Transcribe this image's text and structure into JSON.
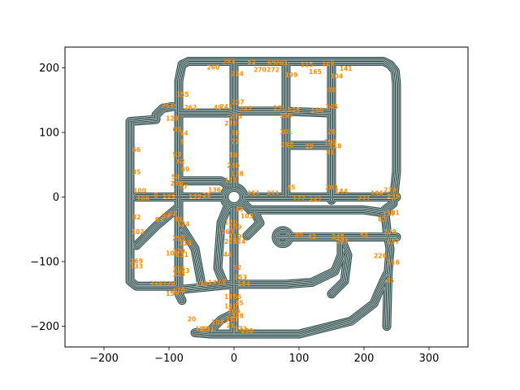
{
  "chart_data": {
    "type": "line",
    "title": "",
    "xlabel": "",
    "ylabel": "",
    "xlim": [
      -260,
      360
    ],
    "ylim": [
      -232,
      232
    ],
    "xticks": [
      -200,
      -100,
      0,
      100,
      200,
      300
    ],
    "yticks": [
      -200,
      -100,
      0,
      100,
      200
    ],
    "xtick_labels": [
      "−200",
      "−100",
      "0",
      "100",
      "200",
      "300"
    ],
    "ytick_labels": [
      "−200",
      "−100",
      "0",
      "100",
      "200"
    ],
    "grid": false,
    "colors": {
      "road": "#2f4f4f",
      "label": "#ff8c00",
      "frame": "#000000",
      "background": "#ffffff"
    },
    "road_segments": [
      [
        [
          -80,
          205
        ],
        [
          -70,
          210
        ],
        [
          230,
          210
        ],
        [
          240,
          205
        ],
        [
          248,
          195
        ],
        [
          250,
          175
        ],
        [
          250,
          40
        ],
        [
          245,
          -10
        ],
        [
          232,
          -20
        ],
        [
          235,
          -50
        ],
        [
          240,
          -80
        ],
        [
          237,
          -120
        ],
        [
          235,
          -200
        ]
      ],
      [
        [
          -80,
          205
        ],
        [
          -85,
          180
        ],
        [
          -85,
          -150
        ],
        [
          -80,
          -160
        ]
      ],
      [
        [
          -95,
          140
        ],
        [
          -110,
          137
        ],
        [
          -120,
          127
        ],
        [
          -120,
          120
        ],
        [
          -160,
          117
        ],
        [
          -160,
          -130
        ],
        [
          -150,
          -138
        ],
        [
          -90,
          -138
        ],
        [
          -80,
          -143
        ]
      ],
      [
        [
          -80,
          -143
        ],
        [
          0,
          -135
        ],
        [
          80,
          -135
        ],
        [
          120,
          -132
        ],
        [
          155,
          -115
        ],
        [
          165,
          -90
        ],
        [
          165,
          -70
        ]
      ],
      [
        [
          -60,
          -210
        ],
        [
          -35,
          -212
        ],
        [
          100,
          -212
        ],
        [
          180,
          -192
        ],
        [
          215,
          -165
        ],
        [
          230,
          -130
        ],
        [
          235,
          -120
        ]
      ],
      [
        [
          -150,
          0
        ],
        [
          -15,
          0
        ]
      ],
      [
        [
          15,
          0
        ],
        [
          250,
          0
        ]
      ],
      [
        [
          -85,
          130
        ],
        [
          -10,
          130
        ],
        [
          10,
          133
        ],
        [
          70,
          133
        ],
        [
          150,
          130
        ]
      ],
      [
        [
          0,
          210
        ],
        [
          0,
          15
        ]
      ],
      [
        [
          0,
          -15
        ],
        [
          0,
          -210
        ]
      ],
      [
        [
          -40,
          -210
        ],
        [
          -20,
          -190
        ],
        [
          0,
          -180
        ]
      ],
      [
        [
          150,
          210
        ],
        [
          150,
          -5
        ]
      ],
      [
        [
          80,
          210
        ],
        [
          80,
          0
        ]
      ],
      [
        [
          80,
          80
        ],
        [
          150,
          80
        ]
      ],
      [
        [
          15,
          -10
        ],
        [
          25,
          -20
        ],
        [
          200,
          -20
        ],
        [
          235,
          -25
        ]
      ],
      [
        [
          -5,
          15
        ],
        [
          -20,
          25
        ],
        [
          -85,
          25
        ]
      ],
      [
        [
          -85,
          -15
        ],
        [
          -120,
          -45
        ],
        [
          -150,
          -75
        ]
      ],
      [
        [
          65,
          -62
        ],
        [
          160,
          -62
        ],
        [
          250,
          -62
        ]
      ],
      [
        [
          -10,
          -15
        ],
        [
          -20,
          -40
        ],
        [
          -25,
          -110
        ],
        [
          -15,
          -135
        ]
      ],
      [
        [
          -85,
          -40
        ],
        [
          -60,
          -80
        ],
        [
          -50,
          -135
        ]
      ],
      [
        [
          30,
          -20
        ],
        [
          40,
          -40
        ],
        [
          20,
          -60
        ]
      ],
      [
        [
          165,
          -65
        ],
        [
          175,
          -90
        ],
        [
          170,
          -130
        ],
        [
          150,
          -150
        ]
      ]
    ],
    "roundabout": {
      "center": [
        0,
        0
      ],
      "radius": 15
    },
    "loop": {
      "center": [
        75,
        -62
      ],
      "rx": 10,
      "ry": 10
    },
    "node_labels": [
      {
        "t": "283",
        "x": -8,
        "y": 209
      },
      {
        "t": "52",
        "x": 27,
        "y": 208
      },
      {
        "t": "69",
        "x": 58,
        "y": 207
      },
      {
        "t": "201",
        "x": 73,
        "y": 207
      },
      {
        "t": "115",
        "x": 112,
        "y": 204
      },
      {
        "t": "107",
        "x": 145,
        "y": 205
      },
      {
        "t": "141",
        "x": 172,
        "y": 198
      },
      {
        "t": "260",
        "x": -32,
        "y": 200
      },
      {
        "t": "224",
        "x": 5,
        "y": 190
      },
      {
        "t": "270",
        "x": 40,
        "y": 196
      },
      {
        "t": "272",
        "x": 60,
        "y": 196
      },
      {
        "t": "165",
        "x": 125,
        "y": 193
      },
      {
        "t": "104",
        "x": 158,
        "y": 186
      },
      {
        "t": "199",
        "x": 88,
        "y": 188
      },
      {
        "t": "155",
        "x": -79,
        "y": 158
      },
      {
        "t": "263",
        "x": -102,
        "y": 140
      },
      {
        "t": "262",
        "x": -67,
        "y": 138
      },
      {
        "t": "49",
        "x": -25,
        "y": 138
      },
      {
        "t": "241",
        "x": -12,
        "y": 139
      },
      {
        "t": "237",
        "x": 6,
        "y": 146
      },
      {
        "t": "242",
        "x": 18,
        "y": 136
      },
      {
        "t": "131",
        "x": 70,
        "y": 137
      },
      {
        "t": "125",
        "x": 92,
        "y": 134
      },
      {
        "t": "150",
        "x": 128,
        "y": 133
      },
      {
        "t": "145",
        "x": 150,
        "y": 139
      },
      {
        "t": "40",
        "x": 150,
        "y": 165
      },
      {
        "t": "235",
        "x": 3,
        "y": 124
      },
      {
        "t": "229",
        "x": -5,
        "y": 113
      },
      {
        "t": "128",
        "x": -95,
        "y": 121
      },
      {
        "t": "150",
        "x": 80,
        "y": 125
      },
      {
        "t": "65",
        "x": -88,
        "y": 104
      },
      {
        "t": "64",
        "x": -77,
        "y": 98
      },
      {
        "t": "5",
        "x": -80,
        "y": 84
      },
      {
        "t": "66",
        "x": -150,
        "y": 72
      },
      {
        "t": "58",
        "x": 2,
        "y": 98
      },
      {
        "t": "72",
        "x": 2,
        "y": 85
      },
      {
        "t": "28",
        "x": 150,
        "y": 100
      },
      {
        "t": "181",
        "x": 80,
        "y": 100
      },
      {
        "t": "258",
        "x": 82,
        "y": 80
      },
      {
        "t": "29",
        "x": 116,
        "y": 78
      },
      {
        "t": "190",
        "x": 148,
        "y": 84
      },
      {
        "t": "218",
        "x": 156,
        "y": 78
      },
      {
        "t": "53",
        "x": -88,
        "y": 65
      },
      {
        "t": "18",
        "x": -1,
        "y": 64
      },
      {
        "t": "250",
        "x": -1,
        "y": 48
      },
      {
        "t": "33",
        "x": 148,
        "y": 68
      },
      {
        "t": "62",
        "x": -82,
        "y": 54
      },
      {
        "t": "69",
        "x": -75,
        "y": 42
      },
      {
        "t": "35",
        "x": -150,
        "y": 38
      },
      {
        "t": "118",
        "x": 5,
        "y": 35
      },
      {
        "t": "113",
        "x": -5,
        "y": 25
      },
      {
        "t": "58",
        "x": -90,
        "y": 30
      },
      {
        "t": "230",
        "x": -88,
        "y": 20
      },
      {
        "t": "57",
        "x": -78,
        "y": 15
      },
      {
        "t": "136",
        "x": -30,
        "y": 10
      },
      {
        "t": "139",
        "x": -60,
        "y": 0
      },
      {
        "t": "125",
        "x": -100,
        "y": 0
      },
      {
        "t": "100",
        "x": -145,
        "y": 9
      },
      {
        "t": "108",
        "x": -140,
        "y": -3
      },
      {
        "t": "0",
        "x": -120,
        "y": 2
      },
      {
        "t": "25",
        "x": -42,
        "y": 2
      },
      {
        "t": "82",
        "x": -150,
        "y": -32
      },
      {
        "t": "89",
        "x": -115,
        "y": -36
      },
      {
        "t": "89",
        "x": -105,
        "y": -30
      },
      {
        "t": "62",
        "x": -95,
        "y": -27
      },
      {
        "t": "86",
        "x": -85,
        "y": -35
      },
      {
        "t": "124",
        "x": -78,
        "y": -43
      },
      {
        "t": "102",
        "x": -148,
        "y": -55
      },
      {
        "t": "45",
        "x": 88,
        "y": 14
      },
      {
        "t": "251",
        "x": 30,
        "y": 5
      },
      {
        "t": "211",
        "x": 60,
        "y": 5
      },
      {
        "t": "203",
        "x": 150,
        "y": 14
      },
      {
        "t": "144",
        "x": 165,
        "y": 8
      },
      {
        "t": "196",
        "x": 220,
        "y": 5
      },
      {
        "t": "239",
        "x": 240,
        "y": 10
      },
      {
        "t": "177",
        "x": 100,
        "y": -3
      },
      {
        "t": "247",
        "x": 125,
        "y": -5
      },
      {
        "t": "271",
        "x": 200,
        "y": -3
      },
      {
        "t": "239",
        "x": 245,
        "y": 0
      },
      {
        "t": "181",
        "x": 245,
        "y": -25
      },
      {
        "t": "137",
        "x": 238,
        "y": -27
      },
      {
        "t": "82",
        "x": 228,
        "y": -35
      },
      {
        "t": "103",
        "x": 20,
        "y": -30
      },
      {
        "t": "43",
        "x": 8,
        "y": -20
      },
      {
        "t": "170",
        "x": -5,
        "y": -40
      },
      {
        "t": "259",
        "x": 2,
        "y": -48
      },
      {
        "t": "263",
        "x": -10,
        "y": -55
      },
      {
        "t": "119",
        "x": 2,
        "y": -62
      },
      {
        "t": "124",
        "x": 8,
        "y": -70
      },
      {
        "t": "209",
        "x": -5,
        "y": -70
      },
      {
        "t": "44",
        "x": -10,
        "y": -90
      },
      {
        "t": "255",
        "x": -85,
        "y": -65
      },
      {
        "t": "118",
        "x": -75,
        "y": -72
      },
      {
        "t": "211",
        "x": -80,
        "y": -90
      },
      {
        "t": "179",
        "x": -85,
        "y": -85
      },
      {
        "t": "169",
        "x": -150,
        "y": -100
      },
      {
        "t": "102",
        "x": -95,
        "y": -88
      },
      {
        "t": "89",
        "x": 100,
        "y": -60
      },
      {
        "t": "42",
        "x": 120,
        "y": -62
      },
      {
        "t": "245",
        "x": 160,
        "y": -62
      },
      {
        "t": "297",
        "x": 166,
        "y": -70
      },
      {
        "t": "58",
        "x": 200,
        "y": -60
      },
      {
        "t": "229",
        "x": 240,
        "y": -55
      },
      {
        "t": "197",
        "x": 245,
        "y": -70
      },
      {
        "t": "226",
        "x": 225,
        "y": -92
      },
      {
        "t": "116",
        "x": 245,
        "y": -102
      },
      {
        "t": "45",
        "x": 240,
        "y": -130
      },
      {
        "t": "133",
        "x": -150,
        "y": -108
      },
      {
        "t": "115",
        "x": -85,
        "y": -112
      },
      {
        "t": "123",
        "x": -78,
        "y": -115
      },
      {
        "t": "125",
        "x": -85,
        "y": -120
      },
      {
        "t": "32",
        "x": 5,
        "y": -110
      },
      {
        "t": "253",
        "x": 10,
        "y": -125
      },
      {
        "t": "334",
        "x": -120,
        "y": -135
      },
      {
        "t": "128",
        "x": -100,
        "y": -135
      },
      {
        "t": "138",
        "x": -50,
        "y": -135
      },
      {
        "t": "133",
        "x": -30,
        "y": -133
      },
      {
        "t": "5",
        "x": -15,
        "y": -132
      },
      {
        "t": "164",
        "x": 15,
        "y": -135
      },
      {
        "t": "126",
        "x": -85,
        "y": -145
      },
      {
        "t": "159",
        "x": -95,
        "y": -150
      },
      {
        "t": "195",
        "x": -5,
        "y": -155
      },
      {
        "t": "56",
        "x": 5,
        "y": -155
      },
      {
        "t": "35",
        "x": 8,
        "y": -165
      },
      {
        "t": "160",
        "x": -5,
        "y": -170
      },
      {
        "t": "166",
        "x": 0,
        "y": -177
      },
      {
        "t": "208",
        "x": 5,
        "y": -185
      },
      {
        "t": "101",
        "x": -3,
        "y": -190
      },
      {
        "t": "20",
        "x": -65,
        "y": -190
      },
      {
        "t": "190",
        "x": -50,
        "y": -205
      },
      {
        "t": "181",
        "x": -40,
        "y": -205
      },
      {
        "t": "104",
        "x": -25,
        "y": -195
      },
      {
        "t": "21",
        "x": -5,
        "y": -200
      },
      {
        "t": "172",
        "x": 10,
        "y": -205
      },
      {
        "t": "150",
        "x": 20,
        "y": -208
      }
    ]
  }
}
